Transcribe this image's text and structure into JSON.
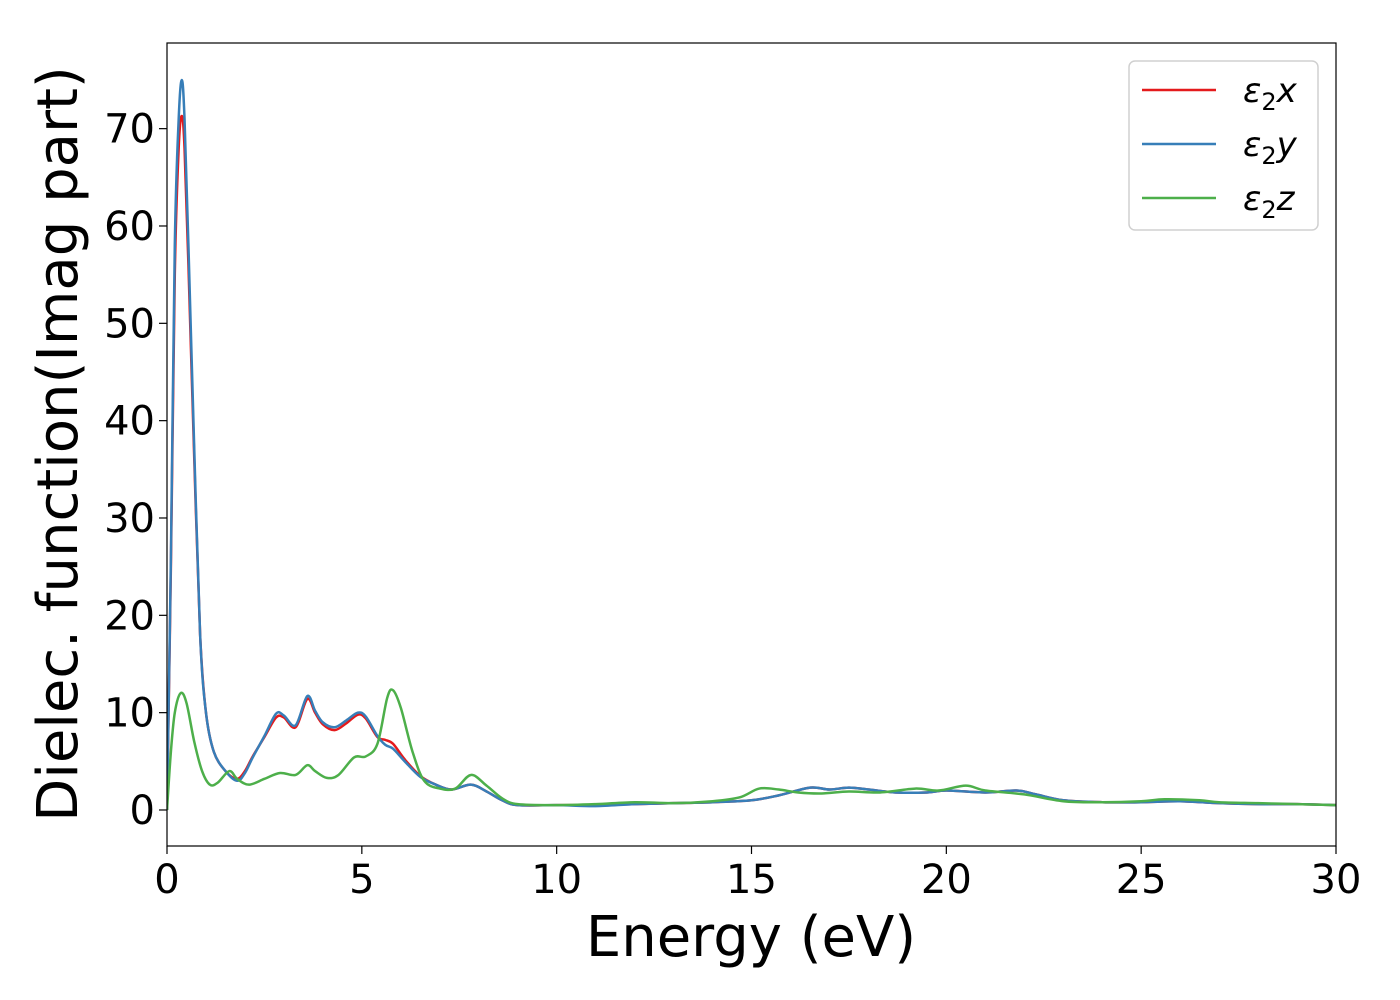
{
  "chart_data": {
    "type": "line",
    "title": "",
    "xlabel": "Energy (eV)",
    "ylabel": "Dielec. function(Imag part)",
    "xlim": [
      0,
      30
    ],
    "ylim": [
      -3.7,
      78.8
    ],
    "xticks": [
      0,
      5,
      10,
      15,
      20,
      25,
      30
    ],
    "yticks": [
      0,
      10,
      20,
      30,
      40,
      50,
      60,
      70
    ],
    "grid": false,
    "legend_position": "top-right",
    "series": [
      {
        "name": "ε₂x",
        "legend_base": "ε",
        "legend_sub": "2",
        "legend_suffix": "x",
        "color": "#e41a1c",
        "points": [
          [
            0,
            0
          ],
          [
            0.1,
            25
          ],
          [
            0.2,
            55
          ],
          [
            0.3,
            68
          ],
          [
            0.38,
            71.3
          ],
          [
            0.45,
            68
          ],
          [
            0.55,
            56
          ],
          [
            0.7,
            36
          ],
          [
            0.85,
            18
          ],
          [
            1.0,
            10
          ],
          [
            1.2,
            6
          ],
          [
            1.5,
            4
          ],
          [
            1.8,
            3.2
          ],
          [
            2.0,
            4
          ],
          [
            2.2,
            5.5
          ],
          [
            2.5,
            7.5
          ],
          [
            2.8,
            9.5
          ],
          [
            3.0,
            9.5
          ],
          [
            3.3,
            8.5
          ],
          [
            3.6,
            11.4
          ],
          [
            3.8,
            10
          ],
          [
            4.0,
            8.8
          ],
          [
            4.3,
            8.2
          ],
          [
            4.6,
            8.9
          ],
          [
            4.9,
            9.8
          ],
          [
            5.1,
            9.4
          ],
          [
            5.4,
            7.5
          ],
          [
            5.6,
            7.2
          ],
          [
            5.8,
            6.8
          ],
          [
            6.1,
            5.2
          ],
          [
            6.5,
            3.5
          ],
          [
            6.9,
            2.6
          ],
          [
            7.3,
            2.1
          ],
          [
            7.8,
            2.6
          ],
          [
            8.2,
            1.9
          ],
          [
            8.6,
            1.0
          ],
          [
            9.0,
            0.5
          ],
          [
            10,
            0.5
          ],
          [
            11,
            0.5
          ],
          [
            12,
            0.6
          ],
          [
            13,
            0.7
          ],
          [
            14,
            0.8
          ],
          [
            15,
            1.0
          ],
          [
            15.7,
            1.5
          ],
          [
            16.5,
            2.3
          ],
          [
            17.0,
            2.1
          ],
          [
            17.5,
            2.3
          ],
          [
            18.0,
            2.1
          ],
          [
            18.7,
            1.8
          ],
          [
            19.5,
            1.8
          ],
          [
            20.0,
            2.0
          ],
          [
            21.0,
            1.8
          ],
          [
            21.8,
            2.0
          ],
          [
            22.3,
            1.6
          ],
          [
            23.0,
            1.0
          ],
          [
            24.0,
            0.8
          ],
          [
            25.0,
            0.8
          ],
          [
            26.0,
            0.9
          ],
          [
            27.0,
            0.7
          ],
          [
            28.0,
            0.6
          ],
          [
            29.0,
            0.6
          ],
          [
            30.0,
            0.5
          ]
        ]
      },
      {
        "name": "ε₂y",
        "legend_base": "ε",
        "legend_sub": "2",
        "legend_suffix": "y",
        "color": "#377eb8",
        "points": [
          [
            0,
            0
          ],
          [
            0.1,
            26
          ],
          [
            0.2,
            58
          ],
          [
            0.3,
            71
          ],
          [
            0.38,
            75.0
          ],
          [
            0.45,
            71
          ],
          [
            0.55,
            58
          ],
          [
            0.7,
            37
          ],
          [
            0.85,
            18
          ],
          [
            1.0,
            10
          ],
          [
            1.2,
            6
          ],
          [
            1.5,
            4
          ],
          [
            1.8,
            3.0
          ],
          [
            2.0,
            3.8
          ],
          [
            2.2,
            5.4
          ],
          [
            2.5,
            7.6
          ],
          [
            2.8,
            9.9
          ],
          [
            3.0,
            9.7
          ],
          [
            3.3,
            8.7
          ],
          [
            3.6,
            11.7
          ],
          [
            3.8,
            10.2
          ],
          [
            4.0,
            9.0
          ],
          [
            4.3,
            8.5
          ],
          [
            4.6,
            9.2
          ],
          [
            4.9,
            10.0
          ],
          [
            5.1,
            9.6
          ],
          [
            5.4,
            7.6
          ],
          [
            5.6,
            6.7
          ],
          [
            5.8,
            6.3
          ],
          [
            6.1,
            5.0
          ],
          [
            6.5,
            3.4
          ],
          [
            6.9,
            2.6
          ],
          [
            7.3,
            2.1
          ],
          [
            7.8,
            2.6
          ],
          [
            8.2,
            1.9
          ],
          [
            8.6,
            1.0
          ],
          [
            9.0,
            0.5
          ],
          [
            10,
            0.5
          ],
          [
            11,
            0.4
          ],
          [
            12,
            0.6
          ],
          [
            13,
            0.7
          ],
          [
            14,
            0.8
          ],
          [
            15,
            1.0
          ],
          [
            15.7,
            1.5
          ],
          [
            16.5,
            2.3
          ],
          [
            17.0,
            2.1
          ],
          [
            17.5,
            2.3
          ],
          [
            18.0,
            2.1
          ],
          [
            18.7,
            1.8
          ],
          [
            19.5,
            1.8
          ],
          [
            20.0,
            2.0
          ],
          [
            21.0,
            1.8
          ],
          [
            21.8,
            2.0
          ],
          [
            22.3,
            1.6
          ],
          [
            23.0,
            1.0
          ],
          [
            24.0,
            0.8
          ],
          [
            25.0,
            0.8
          ],
          [
            26.0,
            0.9
          ],
          [
            27.0,
            0.7
          ],
          [
            28.0,
            0.6
          ],
          [
            29.0,
            0.6
          ],
          [
            30.0,
            0.5
          ]
        ]
      },
      {
        "name": "ε₂z",
        "legend_base": "ε",
        "legend_sub": "2",
        "legend_suffix": "z",
        "color": "#4daf4a",
        "points": [
          [
            0,
            0
          ],
          [
            0.1,
            6
          ],
          [
            0.2,
            10
          ],
          [
            0.35,
            12.0
          ],
          [
            0.5,
            11
          ],
          [
            0.7,
            7
          ],
          [
            0.9,
            4
          ],
          [
            1.1,
            2.6
          ],
          [
            1.3,
            2.8
          ],
          [
            1.6,
            4.0
          ],
          [
            1.8,
            3.2
          ],
          [
            2.1,
            2.6
          ],
          [
            2.5,
            3.2
          ],
          [
            2.9,
            3.8
          ],
          [
            3.3,
            3.6
          ],
          [
            3.6,
            4.6
          ],
          [
            3.8,
            4.0
          ],
          [
            4.1,
            3.3
          ],
          [
            4.4,
            3.6
          ],
          [
            4.8,
            5.4
          ],
          [
            5.1,
            5.5
          ],
          [
            5.4,
            6.8
          ],
          [
            5.65,
            11.5
          ],
          [
            5.8,
            12.3
          ],
          [
            6.0,
            10.5
          ],
          [
            6.3,
            6
          ],
          [
            6.6,
            3.0
          ],
          [
            7.0,
            2.2
          ],
          [
            7.4,
            2.2
          ],
          [
            7.8,
            3.6
          ],
          [
            8.2,
            2.5
          ],
          [
            8.6,
            1.2
          ],
          [
            9.0,
            0.6
          ],
          [
            10,
            0.5
          ],
          [
            11,
            0.6
          ],
          [
            12,
            0.8
          ],
          [
            13,
            0.7
          ],
          [
            14,
            0.9
          ],
          [
            14.7,
            1.3
          ],
          [
            15.2,
            2.2
          ],
          [
            15.7,
            2.1
          ],
          [
            16.2,
            1.8
          ],
          [
            16.8,
            1.7
          ],
          [
            17.5,
            1.9
          ],
          [
            18.3,
            1.8
          ],
          [
            19.2,
            2.2
          ],
          [
            19.8,
            2.0
          ],
          [
            20.5,
            2.5
          ],
          [
            21.0,
            2.0
          ],
          [
            22.0,
            1.6
          ],
          [
            23.0,
            0.9
          ],
          [
            24.0,
            0.8
          ],
          [
            25.0,
            0.9
          ],
          [
            25.6,
            1.1
          ],
          [
            26.5,
            1.0
          ],
          [
            27.0,
            0.8
          ],
          [
            28.0,
            0.7
          ],
          [
            29.0,
            0.6
          ],
          [
            30.0,
            0.5
          ]
        ]
      }
    ]
  }
}
